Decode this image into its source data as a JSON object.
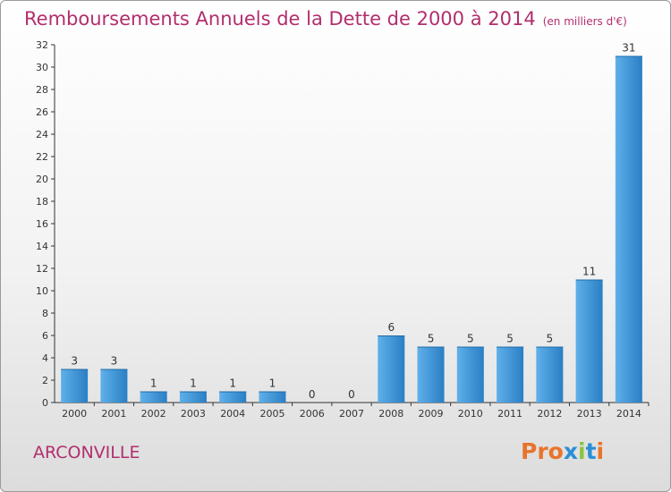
{
  "header": {
    "title": "Remboursements Annuels de la Dette de 2000 à 2014",
    "unit": "(en milliers d'€)"
  },
  "footer": {
    "commune": "ARCONVILLE",
    "logo_text": "Proxiti",
    "logo_colors": [
      "#e8742a",
      "#e8742a",
      "#e8742a",
      "#2b8fd6",
      "#8ac43f",
      "#2b8fd6",
      "#e8742a"
    ]
  },
  "chart_data": {
    "type": "bar",
    "categories": [
      "2000",
      "2001",
      "2002",
      "2003",
      "2004",
      "2005",
      "2006",
      "2007",
      "2008",
      "2009",
      "2010",
      "2011",
      "2012",
      "2013",
      "2014"
    ],
    "values": [
      3,
      3,
      1,
      1,
      1,
      1,
      0,
      0,
      6,
      5,
      5,
      5,
      5,
      11,
      31
    ],
    "ylim": [
      0,
      32
    ],
    "yticks": [
      0,
      2,
      4,
      6,
      8,
      10,
      12,
      14,
      16,
      18,
      20,
      22,
      24,
      26,
      28,
      30,
      32
    ],
    "grid": false,
    "bar_color": "#3d97d9",
    "axis_color": "#333333"
  }
}
